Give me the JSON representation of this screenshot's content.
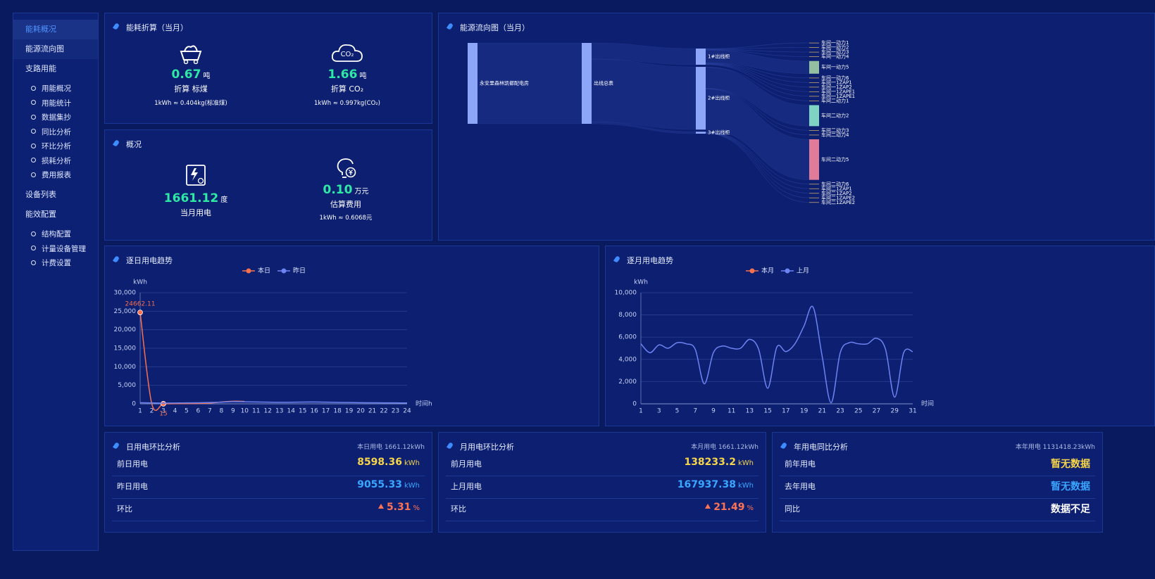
{
  "sidebar": {
    "items": [
      {
        "label": "能耗概况"
      },
      {
        "label": "能源流向图"
      },
      {
        "label": "支路用能",
        "children": [
          "用能概况",
          "用能统计",
          "数据集抄",
          "同比分析",
          "环比分析",
          "损耗分析",
          "费用报表"
        ]
      },
      {
        "label": "设备列表"
      },
      {
        "label": "能效配置",
        "children": [
          "结构配置",
          "计量设备管理",
          "计费设置"
        ]
      }
    ]
  },
  "conversion": {
    "title": "能耗折算（当月）",
    "items": [
      {
        "value": "0.67",
        "unit": "吨",
        "label": "折算 标煤",
        "note": "1kWh ≈ 0.404kg(标准煤)"
      },
      {
        "icon_text": "CO₂",
        "value": "1.66",
        "unit": "吨",
        "label": "折算 CO₂",
        "note": "1kWh ≈ 0.997kg(CO₂)"
      }
    ]
  },
  "overview": {
    "title": "概况",
    "items": [
      {
        "value": "1661.12",
        "unit": "度",
        "label": "当月用电"
      },
      {
        "value": "0.10",
        "unit": "万元",
        "label": "估算费用",
        "note": "1kWh ≈ 0.6068元"
      }
    ]
  },
  "comparisons": [
    {
      "title": "日用电环比分析",
      "summary": "本日用电 1661.12kWh",
      "rows": [
        {
          "label": "前日用电",
          "value": "8598.36",
          "unit": "kWh"
        },
        {
          "label": "昨日用电",
          "value": "9055.33",
          "unit": "kWh"
        },
        {
          "label": "环比",
          "value": "5.31",
          "unit": "%"
        }
      ]
    },
    {
      "title": "月用电环比分析",
      "summary": "本月用电 1661.12kWh",
      "rows": [
        {
          "label": "前月用电",
          "value": "138233.2",
          "unit": "kWh"
        },
        {
          "label": "上月用电",
          "value": "167937.38",
          "unit": "kWh"
        },
        {
          "label": "环比",
          "value": "21.49",
          "unit": "%"
        }
      ]
    },
    {
      "title": "年用电同比分析",
      "summary": "本年用电 1131418.23kWh",
      "rows": [
        {
          "label": "前年用电",
          "value": "暂无数据"
        },
        {
          "label": "去年用电",
          "value": "暂无数据"
        },
        {
          "label": "同比",
          "value": "数据不足"
        }
      ]
    }
  ],
  "chart_data": [
    {
      "type": "line",
      "title": "逐日用电趋势",
      "y_label": "kWh",
      "x_label": "时间h",
      "legend": "top",
      "grid": true,
      "smooth": true,
      "categories": [
        "1",
        "2",
        "3",
        "4",
        "5",
        "6",
        "7",
        "8",
        "9",
        "10",
        "11",
        "12",
        "13",
        "14",
        "15",
        "16",
        "17",
        "18",
        "19",
        "20",
        "21",
        "22",
        "23",
        "24"
      ],
      "series": [
        {
          "name": "本日",
          "color": "#f7704f",
          "values": [
            24662.11,
            50,
            15,
            40,
            60,
            90,
            200,
            500,
            700,
            650,
            null,
            null,
            null,
            null,
            null,
            null,
            null,
            null,
            null,
            null,
            null,
            null,
            null,
            null
          ],
          "value_labels": [
            "24662.11",
            null,
            "15",
            null,
            null,
            null,
            null,
            null,
            null,
            null,
            null,
            null,
            null,
            null,
            null,
            null,
            null,
            null,
            null,
            null,
            null,
            null,
            null,
            null
          ]
        },
        {
          "name": "昨日",
          "color": "#6d83f2",
          "values": [
            300,
            250,
            200,
            220,
            250,
            280,
            350,
            450,
            600,
            550,
            500,
            450,
            400,
            420,
            480,
            500,
            450,
            380,
            350,
            300,
            280,
            260,
            250,
            240
          ]
        }
      ],
      "ylim": [
        0,
        30000
      ],
      "yticks": [
        0,
        {
          "value": 5000,
          "label": "5,000"
        },
        {
          "value": 10000,
          "label": "10,000"
        },
        {
          "value": 15000,
          "label": "15,000"
        },
        {
          "value": 20000,
          "label": "20,000"
        },
        {
          "value": 25000,
          "label": "25,000"
        },
        {
          "value": 30000,
          "label": "30,000"
        }
      ]
    },
    {
      "type": "line",
      "title": "逐月用电趋势",
      "y_label": "kWh",
      "x_label": "时间",
      "legend": "top",
      "grid": true,
      "smooth": true,
      "categories": [
        "1",
        null,
        "3",
        null,
        "5",
        null,
        "7",
        null,
        "9",
        null,
        "11",
        null,
        "13",
        null,
        "15",
        null,
        "17",
        null,
        "19",
        null,
        "21",
        null,
        "23",
        null,
        "25",
        null,
        "27",
        null,
        "29",
        null,
        "31"
      ],
      "series": [
        {
          "name": "本月",
          "color": "#f7704f",
          "values": [
            null,
            null,
            null,
            null,
            null,
            null,
            null,
            null,
            null,
            null,
            null,
            null,
            null,
            null,
            null,
            null,
            null,
            null,
            null,
            null,
            null,
            null,
            null,
            null,
            null,
            null,
            null,
            null,
            null,
            null,
            null
          ]
        },
        {
          "name": "上月",
          "color": "#6d83f2",
          "values": [
            5400,
            4600,
            5300,
            5000,
            5500,
            5400,
            4900,
            1800,
            4600,
            5200,
            5000,
            5000,
            5800,
            4900,
            1400,
            5100,
            4700,
            5400,
            7000,
            8700,
            4300,
            100,
            4600,
            5500,
            5400,
            5400,
            5900,
            4900,
            600,
            4600,
            4700
          ]
        }
      ],
      "ylim": [
        0,
        10000
      ],
      "yticks": [
        0,
        {
          "value": 2000,
          "label": "2,000"
        },
        {
          "value": 4000,
          "label": "4,000"
        },
        {
          "value": 6000,
          "label": "6,000"
        },
        {
          "value": 8000,
          "label": "8,000"
        },
        {
          "value": 10000,
          "label": "10,000"
        }
      ]
    },
    {
      "type": "sankey",
      "title": "能源流向图（当月）",
      "link_color": "#4a66cc",
      "nodes": [
        "永安里森林凯都配电房",
        "出线总表",
        "1#出线柜",
        "2#出线柜",
        "3#出线柜",
        "车间一动力1",
        "车间一动力2",
        "车间一动力3",
        "车间一动力4",
        "车间一动力5",
        "车间一动力6",
        "车间一1ZAP1",
        "车间一1ZAP2",
        "车间一1ZAPE1",
        "车间一1ZAPE1",
        "车间二动力1",
        "车间二动力2",
        "车间二动力3",
        "车间二动力4",
        "车间二动力5",
        "车间二动力6",
        "车间二1ZAP1",
        "车间二1ZAP2",
        "车间二1ZAPE2",
        "车间二1ZAPE2"
      ],
      "node_colors": [
        "#8ea6f7",
        "#8ea6f7",
        "#8ea6f7",
        "#8ea6f7",
        "#8ea6f7",
        "#c9a46c",
        "#c9a46c",
        "#c9a46c",
        "#c9a46c",
        "#94bfa0",
        "#c9a46c",
        "#c9a46c",
        "#c9a46c",
        "#c9a46c",
        "#c9a46c",
        "#c9a46c",
        "#7fd3c3",
        "#c9a46c",
        "#c9a46c",
        "#e07b98",
        "#c9a46c",
        "#c9a46c",
        "#c9a46c",
        "#c9a46c",
        "#c9a46c"
      ],
      "links": [
        {
          "source": 0,
          "target": 1,
          "value": 1656
        },
        {
          "source": 1,
          "target": 2,
          "value": 332
        },
        {
          "source": 1,
          "target": 3,
          "value": 1284
        },
        {
          "source": 1,
          "target": 4,
          "value": 40
        },
        {
          "source": 2,
          "target": 5,
          "value": 8
        },
        {
          "source": 2,
          "target": 6,
          "value": 8
        },
        {
          "source": 2,
          "target": 7,
          "value": 8
        },
        {
          "source": 2,
          "target": 8,
          "value": 8
        },
        {
          "source": 2,
          "target": 9,
          "value": 260
        },
        {
          "source": 2,
          "target": 10,
          "value": 8
        },
        {
          "source": 2,
          "target": 11,
          "value": 8
        },
        {
          "source": 2,
          "target": 12,
          "value": 8
        },
        {
          "source": 2,
          "target": 13,
          "value": 8
        },
        {
          "source": 2,
          "target": 14,
          "value": 8
        },
        {
          "source": 3,
          "target": 15,
          "value": 8
        },
        {
          "source": 3,
          "target": 16,
          "value": 430
        },
        {
          "source": 3,
          "target": 17,
          "value": 8
        },
        {
          "source": 3,
          "target": 18,
          "value": 8
        },
        {
          "source": 3,
          "target": 19,
          "value": 830
        },
        {
          "source": 4,
          "target": 20,
          "value": 8
        },
        {
          "source": 4,
          "target": 21,
          "value": 8
        },
        {
          "source": 4,
          "target": 22,
          "value": 8
        },
        {
          "source": 4,
          "target": 23,
          "value": 8
        },
        {
          "source": 4,
          "target": 24,
          "value": 8
        }
      ]
    }
  ]
}
